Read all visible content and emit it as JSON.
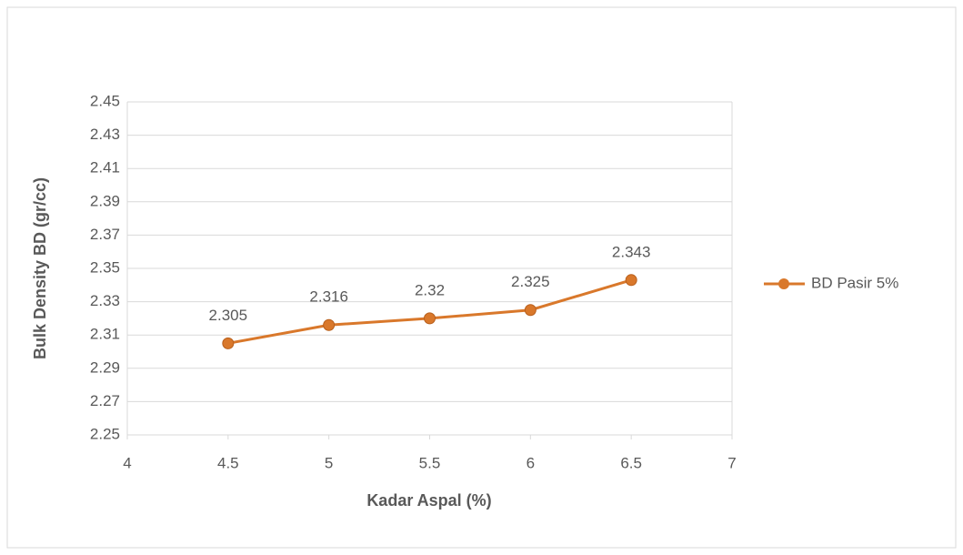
{
  "chart_data": {
    "type": "line",
    "x_label": "Kadar Aspal (%)",
    "y_label": "Bulk Density BD (gr/cc)",
    "x": [
      4.5,
      5,
      5.5,
      6,
      6.5
    ],
    "series": [
      {
        "name": "BD Pasir 5%",
        "color": "#d9782b",
        "values": [
          2.305,
          2.316,
          2.32,
          2.325,
          2.343
        ]
      }
    ],
    "xlim": [
      4,
      7
    ],
    "xticks": [
      4,
      4.5,
      5,
      5.5,
      6,
      6.5,
      7
    ],
    "ylim": [
      2.25,
      2.45
    ],
    "yticks": [
      2.25,
      2.27,
      2.29,
      2.31,
      2.33,
      2.35,
      2.37,
      2.39,
      2.41,
      2.43,
      2.45
    ],
    "grid": true,
    "legend": "right",
    "data_labels": true
  }
}
